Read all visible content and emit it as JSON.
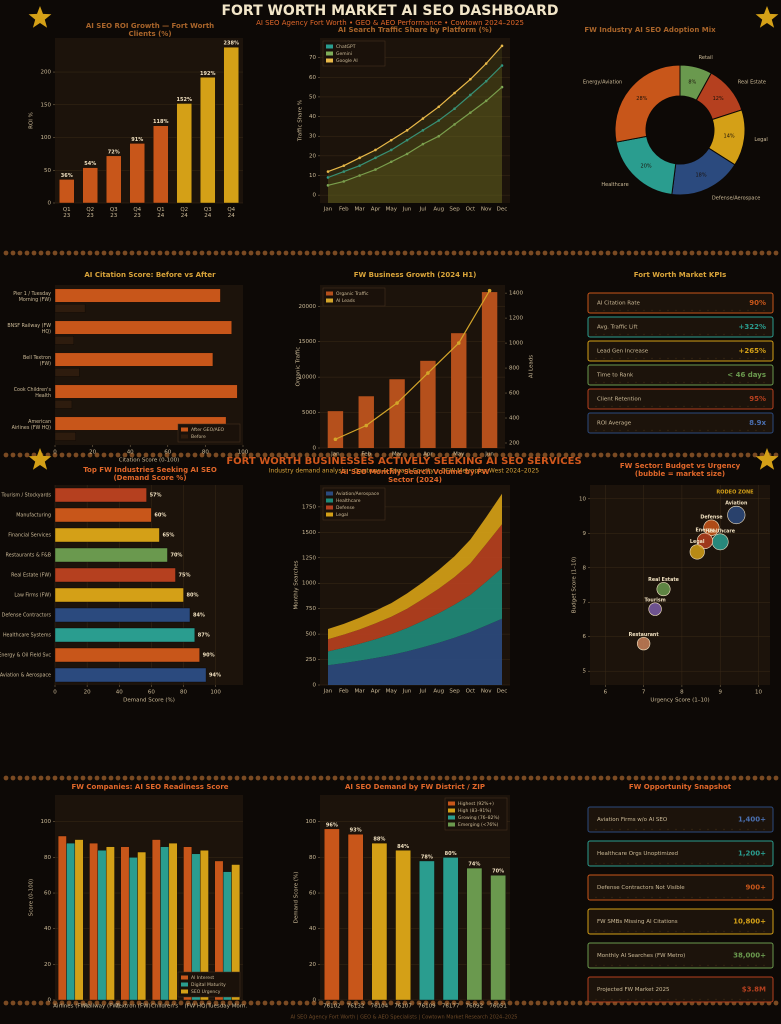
{
  "header": {
    "title": "FORT WORTH MARKET AI SEO DASHBOARD",
    "subtitle": "AI SEO Agency Fort Worth  •  GEO & AEO Performance  •  Cowtown 2024–2025"
  },
  "section": {
    "title": "FORT WORTH BUSINESSES ACTIVELY SEEKING AI SEO SERVICES",
    "subtitle": "Industry demand analysis  •  Cowtown & Tarrant County  •  DFW Metroplex West 2024–2025"
  },
  "chart_data": [
    {
      "type": "bar",
      "title": "AI SEO ROI Growth — Fort Worth Clients (%)",
      "categories": [
        "Q1 23",
        "Q2 23",
        "Q3 23",
        "Q4 23",
        "Q1 24",
        "Q2 24",
        "Q3 24",
        "Q4 24"
      ],
      "values": [
        36,
        54,
        72,
        91,
        118,
        152,
        192,
        238
      ],
      "value_labels": [
        "36%",
        "54%",
        "72%",
        "91%",
        "118%",
        "152%",
        "192%",
        "238%"
      ],
      "colors": [
        "#c8561a",
        "#c8561a",
        "#c8561a",
        "#c8561a",
        "#c8561a",
        "#d4a017",
        "#d4a017",
        "#d4a017"
      ],
      "ylabel": "ROI %",
      "ylim": [
        0,
        252
      ],
      "yticks": [
        0,
        50,
        100,
        150,
        200
      ],
      "grid": true
    },
    {
      "type": "line",
      "title": "AI Search Traffic Share by Platform (%)",
      "categories": [
        "Jan",
        "Feb",
        "Mar",
        "Apr",
        "May",
        "Jun",
        "Jul",
        "Aug",
        "Sep",
        "Oct",
        "Nov",
        "Dec"
      ],
      "series": [
        {
          "name": "ChatGPT",
          "color": "#2a9d8f",
          "values": [
            9,
            12,
            15,
            19,
            23,
            28,
            33,
            38,
            44,
            51,
            58,
            66
          ]
        },
        {
          "name": "Gemini",
          "color": "#7fae5a",
          "values": [
            5,
            7,
            10,
            13,
            17,
            21,
            26,
            30,
            36,
            42,
            48,
            55
          ]
        },
        {
          "name": "Google AI",
          "color": "#e9b949",
          "values": [
            12,
            15,
            19,
            23,
            28,
            33,
            39,
            45,
            52,
            59,
            67,
            76
          ]
        }
      ],
      "ylabel": "Traffic Share %",
      "ylim": [
        -4,
        80
      ],
      "yticks": [
        0,
        10,
        20,
        30,
        40,
        50,
        60,
        70
      ],
      "grid": true,
      "legend": "upper left"
    },
    {
      "type": "pie",
      "title": "FW Industry AI SEO Adoption Mix",
      "labels": [
        "Retail",
        "Real Estate",
        "Legal",
        "Defense/Aerospace",
        "Healthcare",
        "Energy/Aviation"
      ],
      "values": [
        8,
        12,
        14,
        18,
        20,
        28
      ],
      "value_labels": [
        "8%",
        "12%",
        "14%",
        "18%",
        "20%",
        "28%"
      ],
      "colors": [
        "#6a994e",
        "#b5401f",
        "#d4a017",
        "#2b4a7e",
        "#2a9d8f",
        "#c8561a"
      ]
    },
    {
      "type": "hbar",
      "title": "AI Citation Score: Before vs After",
      "categories": [
        "Pier 1 / Tuesday Morning (FW)",
        "BNSF Railway (FW HQ)",
        "Bell Textron (FW)",
        "Cook Children's Health",
        "American Airlines (FW HQ)"
      ],
      "series": [
        {
          "name": "After GEO/AEO",
          "color": "#c8561a",
          "values": [
            88,
            94,
            84,
            97,
            91
          ]
        },
        {
          "name": "Before",
          "color": "#2e1c0e",
          "values": [
            16,
            10,
            13,
            9,
            11
          ]
        }
      ],
      "xlabel": "Citation Score (0-100)",
      "xlim": [
        0,
        100
      ],
      "xticks": [
        0,
        20,
        40,
        60,
        80,
        100
      ],
      "grid": false,
      "legend": "lower right"
    },
    {
      "type": "combo",
      "title": "FW Business Growth (2024 H1)",
      "categories": [
        "Jan",
        "Feb",
        "Mar",
        "Apr",
        "May",
        "Jun"
      ],
      "series": [
        {
          "name": "Organic Traffic",
          "color": "#b5501c",
          "values": [
            5200,
            7300,
            9700,
            12300,
            16200,
            22000
          ]
        },
        {
          "name": "AI Leads",
          "color": "#d4a52a",
          "axis": "y2",
          "values": [
            230,
            340,
            520,
            760,
            1000,
            1420
          ]
        }
      ],
      "ylabel": "Organic Traffic",
      "y2label": "AI Leads",
      "ylim": [
        0,
        23000
      ],
      "yticks": [
        0,
        5000,
        10000,
        15000,
        20000
      ],
      "y2lim": [
        160,
        1465
      ],
      "y2ticks": [
        200,
        400,
        600,
        800,
        1000,
        1200,
        1400
      ],
      "grid": true,
      "legend": "upper left"
    },
    {
      "type": "hbar",
      "title": "Top FW Industries Seeking AI SEO (Demand Score %)",
      "categories": [
        "Tourism / Stockyards",
        "Manufacturing",
        "Financial Services",
        "Restaurants & F&B",
        "Real Estate (FW)",
        "Law Firms (FW)",
        "Defense Contractors",
        "Healthcare Systems",
        "Energy & Oil Field Svc",
        "Aviation & Aerospace"
      ],
      "values": [
        57,
        60,
        65,
        70,
        75,
        80,
        84,
        87,
        90,
        94
      ],
      "value_labels": [
        "57%",
        "60%",
        "65%",
        "70%",
        "75%",
        "80%",
        "84%",
        "87%",
        "90%",
        "94%"
      ],
      "colors": [
        "#b5401f",
        "#c8561a",
        "#d4a017",
        "#6a994e",
        "#b5401f",
        "#d4a017",
        "#2b4a7e",
        "#2a9d8f",
        "#c8561a",
        "#2b4a7e"
      ],
      "xlabel": "Demand Score (%)",
      "xlim": [
        0,
        117
      ],
      "xticks": [
        0,
        20,
        40,
        60,
        80,
        100
      ],
      "grid": true
    },
    {
      "type": "area",
      "title": "AI SEO Monthly Search Volume by FW Sector (2024)",
      "categories": [
        "Jan",
        "Feb",
        "Mar",
        "Apr",
        "May",
        "Jun",
        "Jul",
        "Aug",
        "Sep",
        "Oct",
        "Nov",
        "Dec"
      ],
      "series": [
        {
          "name": "Aviation/Aerospace",
          "color": "#2b4a7e",
          "values": [
            195,
            215,
            240,
            265,
            295,
            330,
            370,
            415,
            465,
            520,
            585,
            650
          ]
        },
        {
          "name": "Healthcare",
          "color": "#1f8a7a",
          "values": [
            135,
            150,
            165,
            185,
            205,
            230,
            260,
            290,
            325,
            365,
            430,
            500
          ]
        },
        {
          "name": "Defense",
          "color": "#b5401f",
          "values": [
            120,
            130,
            140,
            155,
            170,
            190,
            215,
            240,
            270,
            310,
            370,
            430
          ]
        },
        {
          "name": "Legal",
          "color": "#d4a017",
          "values": [
            100,
            105,
            115,
            125,
            135,
            150,
            165,
            185,
            205,
            235,
            265,
            300
          ]
        }
      ],
      "ylabel": "Monthly Searches",
      "ylim": [
        0,
        1965
      ],
      "yticks": [
        0,
        250,
        500,
        750,
        1000,
        1250,
        1500,
        1750
      ],
      "grid": true,
      "legend": "upper left"
    },
    {
      "type": "bubble",
      "title": "FW Sector: Budget vs Urgency (bubble = market size)",
      "labels": [
        "Aviation",
        "Defense",
        "Healthcare",
        "Energy",
        "Legal",
        "Real Estate",
        "Tourism",
        "Restaurant"
      ],
      "x": [
        9.42,
        8.77,
        9.0,
        8.6,
        8.4,
        7.52,
        7.3,
        7.0
      ],
      "values": [
        9.53,
        9.16,
        8.75,
        8.78,
        8.46,
        7.38,
        6.8,
        5.8
      ],
      "sizes": [
        95,
        75,
        80,
        75,
        65,
        55,
        50,
        50
      ],
      "colors": [
        "#2b4a7e",
        "#c8561a",
        "#2a9d8f",
        "#b5401f",
        "#d4a017",
        "#6a994e",
        "#7b5ea7",
        "#c9825b"
      ],
      "annotation": "RODEO ZONE",
      "xlabel": "Urgency Score (1–10)",
      "ylabel": "Budget Score (1–10)",
      "xlim": [
        5.6,
        10.3
      ],
      "xticks": [
        6,
        7,
        8,
        9,
        10
      ],
      "ylim": [
        4.6,
        10.4
      ],
      "yticks": [
        5,
        6,
        7,
        8,
        9,
        10
      ],
      "grid": true
    },
    {
      "type": "bar",
      "title": "FW Companies: AI SEO Readiness Score",
      "categories": [
        "Airlines (FW)",
        "Railway (FW)",
        "Textron (FW)",
        "Children's",
        "(FW HQ)",
        "Tuesday Morn."
      ],
      "series": [
        {
          "name": "AI Interest",
          "color": "#c8561a",
          "values": [
            92,
            88,
            86,
            90,
            86,
            78
          ]
        },
        {
          "name": "Digital Maturity",
          "color": "#2a9d8f",
          "values": [
            88,
            84,
            80,
            86,
            82,
            72
          ]
        },
        {
          "name": "SEO Urgency",
          "color": "#d4a017",
          "values": [
            90,
            86,
            83,
            88,
            84,
            76
          ]
        }
      ],
      "ylabel": "Score (0-100)",
      "ylim": [
        0,
        115
      ],
      "yticks": [
        0,
        20,
        40,
        60,
        80,
        100
      ],
      "grid": true,
      "legend": "lower right"
    },
    {
      "type": "bar",
      "title": "AI SEO Demand by FW District / ZIP",
      "categories": [
        "76102",
        "76132",
        "76104",
        "76107",
        "76109",
        "76177",
        "76092",
        "76051"
      ],
      "values": [
        96,
        93,
        88,
        84,
        78,
        80,
        74,
        70
      ],
      "value_labels": [
        "96%",
        "93%",
        "88%",
        "84%",
        "78%",
        "80%",
        "74%",
        "70%"
      ],
      "colors": [
        "#c8561a",
        "#c8561a",
        "#d4a017",
        "#d4a017",
        "#2a9d8f",
        "#2a9d8f",
        "#6a994e",
        "#6a994e"
      ],
      "legend_entries": [
        {
          "name": "Highest (92%+)",
          "color": "#c8561a"
        },
        {
          "name": "High (83–91%)",
          "color": "#d4a017"
        },
        {
          "name": "Growing (76–82%)",
          "color": "#2a9d8f"
        },
        {
          "name": "Emerging (<76%)",
          "color": "#6a994e"
        }
      ],
      "ylabel": "Demand Score (%)",
      "ylim": [
        0,
        115
      ],
      "yticks": [
        0,
        20,
        40,
        60,
        80,
        100
      ],
      "grid": true,
      "legend": "upper right"
    }
  ],
  "kpis": {
    "title": "Fort Worth Market KPIs",
    "items": [
      {
        "label": "AI Citation Rate",
        "value": "90%",
        "color": "#c8561a"
      },
      {
        "label": "Avg. Traffic Lift",
        "value": "+322%",
        "color": "#2a9d8f"
      },
      {
        "label": "Lead Gen Increase",
        "value": "+265%",
        "color": "#d4a017"
      },
      {
        "label": "Time to Rank",
        "value": "< 46 days",
        "color": "#6a994e"
      },
      {
        "label": "Client Retention",
        "value": "95%",
        "color": "#b5401f"
      },
      {
        "label": "ROI Average",
        "value": "8.9x",
        "color": "#2b4a7e"
      }
    ]
  },
  "opportunities": {
    "title": "FW Opportunity Snapshot",
    "items": [
      {
        "label": "Aviation Firms w/o AI SEO",
        "value": "1,400+",
        "color": "#2b4a7e"
      },
      {
        "label": "Healthcare Orgs Unoptimized",
        "value": "1,200+",
        "color": "#2a9d8f"
      },
      {
        "label": "Defense Contractors Not Visible",
        "value": "900+",
        "color": "#c8561a"
      },
      {
        "label": "FW SMBs Missing AI Citations",
        "value": "10,800+",
        "color": "#d4a017"
      },
      {
        "label": "Monthly AI Searches (FW Metro)",
        "value": "38,000+",
        "color": "#6a994e"
      },
      {
        "label": "Projected FW Market 2025",
        "value": "$3.8M",
        "color": "#b5401f"
      }
    ]
  },
  "footer": "AI SEO Agency Fort Worth  |  GEO & AEO Specialists  |  Cowtown Market Research 2024–2025"
}
